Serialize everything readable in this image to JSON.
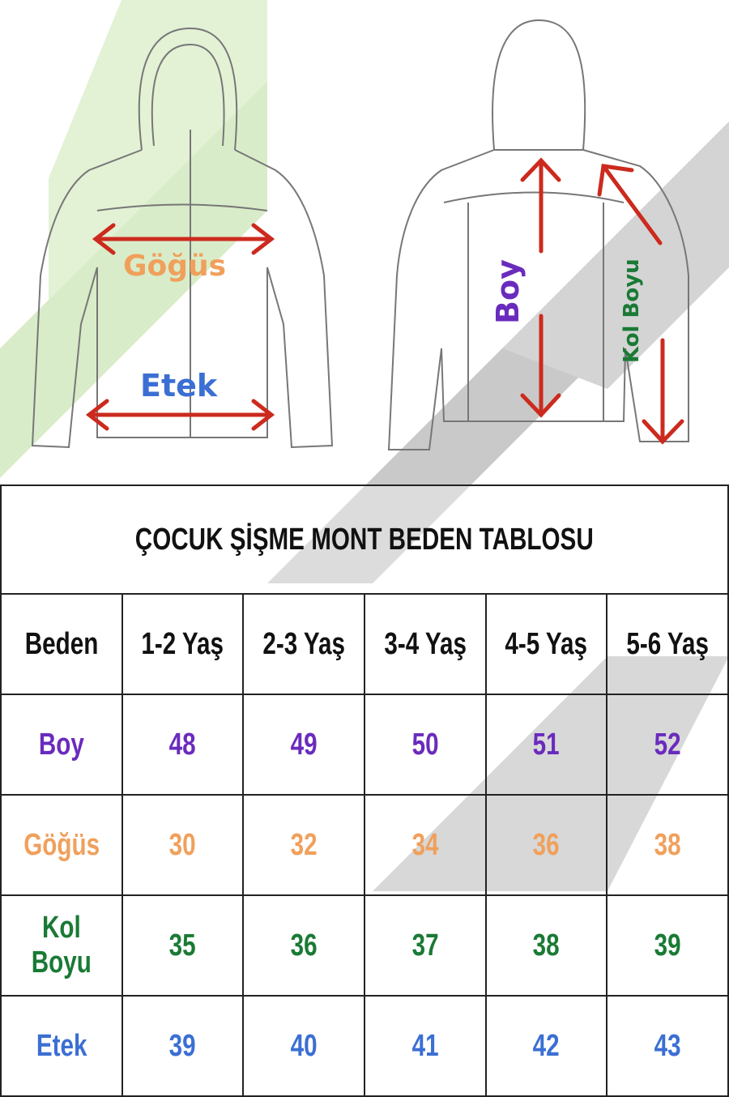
{
  "labels": {
    "chest": "Göğüs",
    "hem": "Etek",
    "length": "Boy",
    "sleeve": "Kol Boyu"
  },
  "colors": {
    "length": "#6a2bbd",
    "chest": "#f0a05c",
    "sleeve": "#1a7a35",
    "hem": "#3b6fd3",
    "arrow": "#cc2a1e"
  },
  "table": {
    "title": "ÇOCUK ŞİŞME MONT BEDEN TABLOSU",
    "headers": [
      "Beden",
      "1-2 Yaş",
      "2-3 Yaş",
      "3-4 Yaş",
      "4-5 Yaş",
      "5-6 Yaş"
    ],
    "rows": [
      {
        "label": "Boy",
        "values": [
          "48",
          "49",
          "50",
          "51",
          "52"
        ]
      },
      {
        "label": "Göğüs",
        "values": [
          "30",
          "32",
          "34",
          "36",
          "38"
        ]
      },
      {
        "label": "Kol Boyu",
        "values": [
          "35",
          "36",
          "37",
          "38",
          "39"
        ]
      },
      {
        "label": "Etek",
        "values": [
          "39",
          "40",
          "41",
          "42",
          "43"
        ]
      }
    ]
  }
}
